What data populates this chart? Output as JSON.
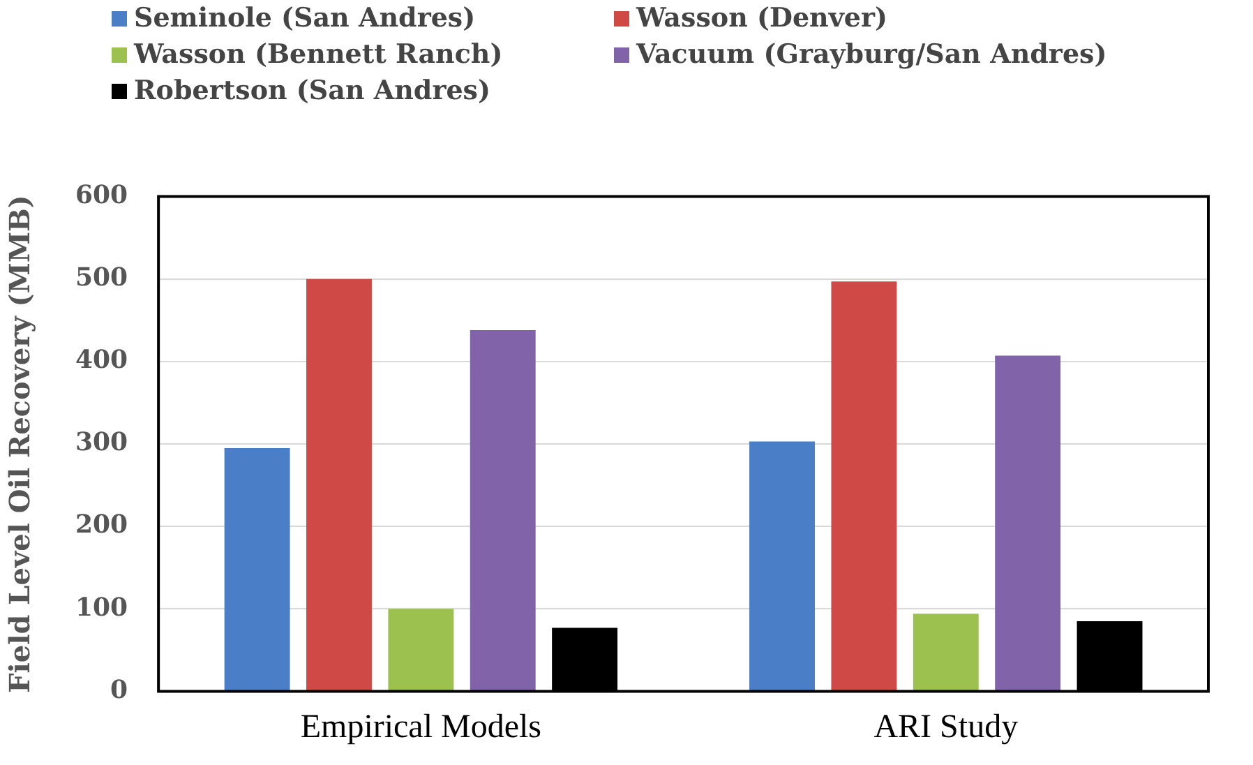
{
  "chart_data": {
    "type": "bar",
    "ylabel": "Field Level Oil Recovery (MMB)",
    "categories": [
      "Empirical Models",
      "ARI Study"
    ],
    "series": [
      {
        "name": "Seminole (San Andres)",
        "color": "#4a7fc8",
        "values": [
          295,
          303
        ]
      },
      {
        "name": "Wasson (Denver)",
        "color": "#cf4a47",
        "values": [
          500,
          497
        ]
      },
      {
        "name": "Wasson (Bennett Ranch)",
        "color": "#9cc14f",
        "values": [
          100,
          94
        ]
      },
      {
        "name": "Vacuum (Grayburg/San Andres)",
        "color": "#8063a8",
        "values": [
          438,
          407
        ]
      },
      {
        "name": "Robertson (San Andres)",
        "color": "#000000",
        "values": [
          77,
          85
        ]
      }
    ],
    "ylim": [
      0,
      600
    ],
    "yticks": [
      0,
      100,
      200,
      300,
      400,
      500,
      600
    ],
    "grid": "y",
    "legend": "top"
  }
}
